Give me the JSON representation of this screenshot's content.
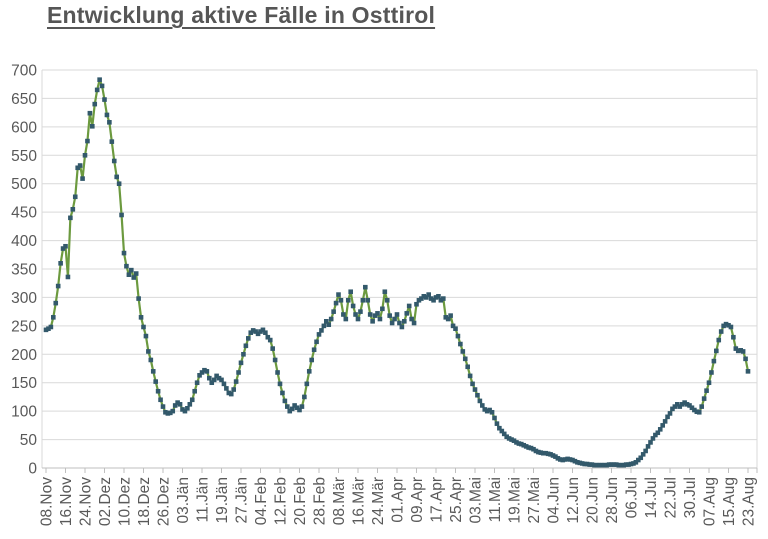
{
  "title": "Entwicklung aktive Fälle in Osttirol",
  "colors": {
    "line": "#6C9A3F",
    "marker": "#33596B",
    "gridline": "#d9d9d9",
    "axis": "#bfbfbf",
    "text": "#595959",
    "title_text": "#565656",
    "background": "#ffffff"
  },
  "chart_data": {
    "type": "line",
    "title": "Entwicklung aktive Fälle in Osttirol",
    "xlabel": "",
    "ylabel": "",
    "ylim": [
      0,
      700
    ],
    "y_ticks": [
      0,
      50,
      100,
      150,
      200,
      250,
      300,
      350,
      400,
      450,
      500,
      550,
      600,
      650,
      700
    ],
    "grid": true,
    "legend_position": "none",
    "x_tick_interval_days": 8,
    "x_tick_labels": [
      "08.Nov",
      "16.Nov",
      "24.Nov",
      "02.Dez",
      "10.Dez",
      "18.Dez",
      "26.Dez",
      "03.Jän",
      "11.Jän",
      "19.Jän",
      "27.Jän",
      "04.Feb",
      "12.Feb",
      "20.Feb",
      "28.Feb",
      "08.Mär",
      "16.Mär",
      "24.Mär",
      "01.Apr",
      "09.Apr",
      "17.Apr",
      "25.Apr",
      "03.Mai",
      "11.Mai",
      "19.Mai",
      "27.Mai",
      "04.Jun",
      "12.Jun",
      "20.Jun",
      "28.Jun",
      "06.Jul",
      "14.Jul",
      "22.Jul",
      "30.Jul",
      "07.Aug",
      "15.Aug",
      "23.Aug"
    ],
    "series": [
      {
        "name": "aktive Fälle",
        "marker": "square",
        "values": [
          243,
          245,
          248,
          265,
          290,
          320,
          360,
          386,
          390,
          336,
          440,
          455,
          477,
          528,
          532,
          509,
          550,
          575,
          624,
          601,
          640,
          665,
          683,
          672,
          648,
          621,
          608,
          574,
          540,
          512,
          500,
          445,
          378,
          355,
          340,
          348,
          335,
          342,
          298,
          265,
          248,
          232,
          205,
          190,
          170,
          152,
          135,
          120,
          108,
          98,
          96,
          97,
          100,
          110,
          115,
          112,
          103,
          100,
          105,
          112,
          120,
          135,
          150,
          163,
          168,
          172,
          170,
          158,
          150,
          155,
          162,
          158,
          155,
          148,
          140,
          132,
          130,
          138,
          152,
          168,
          185,
          200,
          215,
          228,
          238,
          242,
          240,
          236,
          240,
          243,
          238,
          230,
          225,
          210,
          190,
          168,
          148,
          132,
          118,
          108,
          100,
          104,
          110,
          106,
          102,
          108,
          125,
          148,
          170,
          190,
          208,
          222,
          235,
          242,
          250,
          258,
          252,
          262,
          275,
          290,
          305,
          295,
          270,
          262,
          295,
          310,
          285,
          270,
          262,
          275,
          295,
          318,
          295,
          270,
          258,
          268,
          272,
          262,
          280,
          310,
          295,
          268,
          255,
          262,
          270,
          255,
          248,
          258,
          272,
          285,
          262,
          255,
          288,
          295,
          298,
          302,
          300,
          305,
          298,
          295,
          300,
          302,
          295,
          298,
          265,
          262,
          268,
          250,
          245,
          232,
          218,
          205,
          192,
          178,
          162,
          148,
          138,
          128,
          118,
          110,
          103,
          100,
          102,
          98,
          88,
          78,
          70,
          65,
          60,
          55,
          52,
          50,
          48,
          45,
          43,
          42,
          40,
          38,
          36,
          35,
          33,
          30,
          28,
          27,
          26,
          26,
          25,
          24,
          22,
          20,
          17,
          15,
          14,
          15,
          16,
          15,
          14,
          12,
          10,
          9,
          8,
          7,
          7,
          6,
          6,
          5,
          5,
          5,
          5,
          5,
          5,
          6,
          6,
          6,
          6,
          5,
          5,
          5,
          6,
          6,
          7,
          8,
          10,
          14,
          18,
          24,
          30,
          38,
          45,
          52,
          58,
          62,
          68,
          75,
          82,
          90,
          96,
          104,
          108,
          112,
          108,
          112,
          115,
          112,
          110,
          106,
          102,
          99,
          98,
          108,
          122,
          136,
          150,
          168,
          188,
          206,
          225,
          240,
          250,
          253,
          251,
          248,
          230,
          210,
          206,
          207,
          205,
          192,
          170
        ]
      }
    ]
  }
}
